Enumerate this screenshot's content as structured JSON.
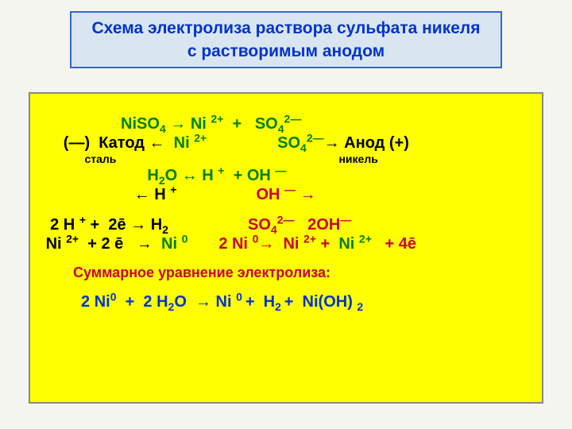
{
  "background_color": "#f5f5f0",
  "title": {
    "box_bg": "#d9e6f2",
    "box_border": "#3366cc",
    "text_color": "#0033cc",
    "font_size": 21,
    "line1": "Схема электролиза раствора сульфата никеля",
    "line2": "с растворимым анодом"
  },
  "content": {
    "box_bg": "#ffff00",
    "box_border": "#888",
    "colors": {
      "green": "#008000",
      "black": "#000000",
      "red": "#cc0033",
      "blue": "#0033cc"
    },
    "eq1_lead": "                  ",
    "eq1": "NiSO",
    "eq1_sub4": "4",
    "eq1_mid": " → Ni ",
    "eq1_sup2p": "2+",
    "eq1_mid2": "  +   SO",
    "eq1_sub4b": "4",
    "eq1_sup2m": "2―",
    "eq2_lead": "     ",
    "eq2a": "(―)  Катод ← ",
    "eq2b": " Ni ",
    "eq2b_sup": "2+",
    "eq2_space": "                ",
    "eq2c": "SO",
    "eq2c_sub": "4",
    "eq2c_sup": "2―",
    "eq2d": "→ Анод (+)",
    "eq2sub_lead": "              ",
    "eq2sub_a": "сталь",
    "eq2sub_space": "                                                                        ",
    "eq2sub_b": "никель",
    "eq3_lead": "                        ",
    "eq3a": "H",
    "eq3a_sub": "2",
    "eq3b": "O ↔ H ",
    "eq3b_sup": "+",
    "eq3c": "  + OH ",
    "eq3c_sup": "―",
    "eq4_lead": "                     ",
    "eq4a": "← H ",
    "eq4a_sup": "+",
    "eq4_space": "                  ",
    "eq4b": "OH ",
    "eq4b_sup": "―",
    "eq4c": " →",
    "eq5_lead": "  ",
    "eq5a": "2 H ",
    "eq5a_sup": "+",
    "eq5b": " +  2ē → H",
    "eq5b_sub": "2",
    "eq5_space": "                  ",
    "eq5c": "SO",
    "eq5c_sub": "4",
    "eq5c_sup": "2―",
    "eq5d": "   2OH",
    "eq5d_sup": "―",
    "eq6_lead": " ",
    "eq6a": "Ni ",
    "eq6a_sup": "2+",
    "eq6b": "  + 2 ē   → ",
    "eq6c": " Ni ",
    "eq6c_sup": "0",
    "eq6_space": "       ",
    "eq6d": "2 Ni ",
    "eq6d_sup": "0",
    "eq6e": "→  Ni ",
    "eq6e_sup": "2+",
    "eq6f": " + ",
    "eq6g": " Ni ",
    "eq6g_sup": "2+",
    "eq6h": "   + 4ē",
    "summary_label": "Суммарное уравнение электролиза:",
    "summary_label_color": "#cc0033",
    "summary_lead": "        ",
    "eq7_lead": "         ",
    "eq7a": "2 Ni",
    "eq7a_sup": "0",
    "eq7b": "  +  2 H",
    "eq7b_sub": "2",
    "eq7c": "O  → Ni ",
    "eq7c_sup": "0 ",
    "eq7d": "+  H",
    "eq7d_sub": "2 ",
    "eq7e": "+  Ni(ОН) ",
    "eq7e_sub": "2"
  }
}
